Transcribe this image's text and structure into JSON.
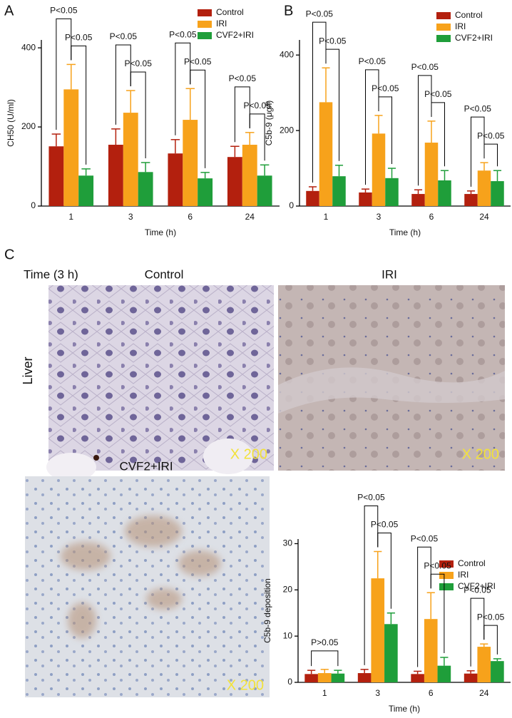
{
  "figure": {
    "panels": [
      "A",
      "B",
      "C"
    ],
    "time_label": "Time (3 h)",
    "row_label": "Liver",
    "images": [
      {
        "title": "Control",
        "scale": "X 200"
      },
      {
        "title": "IRI",
        "scale": "X 200"
      },
      {
        "title": "CVF2+IRI",
        "scale": "X 200"
      }
    ]
  },
  "chart_data": [
    {
      "type": "bar",
      "y_label": "CH50 (U/ml)",
      "x_label": "Time (h)",
      "categories": [
        "1",
        "3",
        "6",
        "24"
      ],
      "series": [
        {
          "name": "Control",
          "color": "#b3200e",
          "values": [
            151,
            155,
            133,
            124
          ],
          "errors": [
            31,
            40,
            35,
            27
          ]
        },
        {
          "name": "IRI",
          "color": "#f7a21b",
          "values": [
            295,
            236,
            218,
            155
          ],
          "errors": [
            63,
            56,
            79,
            31
          ]
        },
        {
          "name": "CVF2+IRI",
          "color": "#1f9e3a",
          "values": [
            77,
            86,
            70,
            77
          ],
          "errors": [
            17,
            24,
            15,
            27
          ]
        }
      ],
      "ylim": [
        0,
        420
      ],
      "yticks": [
        0,
        200,
        400
      ],
      "legend": "upper right",
      "annotations": [
        {
          "text": "P<0.05",
          "category": 0,
          "series": [
            0,
            1
          ]
        },
        {
          "text": "P<0.05",
          "category": 0,
          "series": [
            1,
            2
          ]
        },
        {
          "text": "P<0.05",
          "category": 1,
          "series": [
            0,
            1
          ]
        },
        {
          "text": "P<0.05",
          "category": 1,
          "series": [
            1,
            2
          ]
        },
        {
          "text": "P<0.05",
          "category": 2,
          "series": [
            0,
            1
          ]
        },
        {
          "text": "P<0.05",
          "category": 2,
          "series": [
            1,
            2
          ]
        },
        {
          "text": "P<0.05",
          "category": 3,
          "series": [
            0,
            1
          ]
        },
        {
          "text": "P<0.05",
          "category": 3,
          "series": [
            1,
            2
          ]
        }
      ]
    },
    {
      "type": "bar",
      "y_label": "C5b-9 (μg/l)",
      "x_label": "Time (h)",
      "categories": [
        "1",
        "3",
        "6",
        "24"
      ],
      "series": [
        {
          "name": "Control",
          "color": "#b3200e",
          "values": [
            40,
            36,
            32,
            32
          ],
          "errors": [
            11,
            9,
            11,
            8
          ]
        },
        {
          "name": "IRI",
          "color": "#f7a21b",
          "values": [
            275,
            192,
            168,
            94
          ],
          "errors": [
            91,
            48,
            57,
            21
          ]
        },
        {
          "name": "CVF2+IRI",
          "color": "#1f9e3a",
          "values": [
            79,
            74,
            68,
            66
          ],
          "errors": [
            29,
            26,
            26,
            28
          ]
        }
      ],
      "ylim": [
        0,
        440
      ],
      "yticks": [
        0,
        200,
        400
      ],
      "legend": "upper right",
      "annotations": [
        {
          "text": "P<0.05",
          "category": 0,
          "series": [
            0,
            1
          ]
        },
        {
          "text": "P<0.05",
          "category": 0,
          "series": [
            1,
            2
          ]
        },
        {
          "text": "P<0.05",
          "category": 1,
          "series": [
            0,
            1
          ]
        },
        {
          "text": "P<0.05",
          "category": 1,
          "series": [
            1,
            2
          ]
        },
        {
          "text": "P<0.05",
          "category": 2,
          "series": [
            0,
            1
          ]
        },
        {
          "text": "P<0.05",
          "category": 2,
          "series": [
            1,
            2
          ]
        },
        {
          "text": "P<0.05",
          "category": 3,
          "series": [
            0,
            1
          ]
        },
        {
          "text": "P<0.05",
          "category": 3,
          "series": [
            1,
            2
          ]
        }
      ]
    },
    {
      "type": "bar",
      "y_label": "C5b-9 deposition",
      "x_label": "Time (h)",
      "categories": [
        "1",
        "3",
        "6",
        "24"
      ],
      "series": [
        {
          "name": "Control",
          "color": "#b3200e",
          "values": [
            1.8,
            2.0,
            1.8,
            1.9
          ],
          "errors": [
            0.8,
            0.8,
            0.6,
            0.6
          ]
        },
        {
          "name": "IRI",
          "color": "#f7a21b",
          "values": [
            2.0,
            22.5,
            13.7,
            7.7
          ],
          "errors": [
            0.8,
            5.8,
            5.7,
            0.6
          ]
        },
        {
          "name": "CVF2+IRI",
          "color": "#1f9e3a",
          "values": [
            1.9,
            12.6,
            3.6,
            4.6
          ],
          "errors": [
            0.7,
            2.4,
            1.8,
            0.5
          ]
        }
      ],
      "ylim": [
        0,
        31
      ],
      "yticks": [
        0,
        10,
        20,
        30
      ],
      "legend": "upper right",
      "annotations": [
        {
          "text": "P>0.05",
          "category": 0,
          "series": [
            0,
            2
          ]
        },
        {
          "text": "P<0.05",
          "category": 1,
          "series": [
            0,
            1
          ]
        },
        {
          "text": "P<0.05",
          "category": 1,
          "series": [
            1,
            2
          ]
        },
        {
          "text": "P<0.05",
          "category": 2,
          "series": [
            0,
            1
          ]
        },
        {
          "text": "P<0.05",
          "category": 2,
          "series": [
            1,
            2
          ]
        },
        {
          "text": "P<0.05",
          "category": 3,
          "series": [
            0,
            1
          ]
        },
        {
          "text": "P<0.05",
          "category": 3,
          "series": [
            1,
            2
          ]
        }
      ]
    }
  ]
}
